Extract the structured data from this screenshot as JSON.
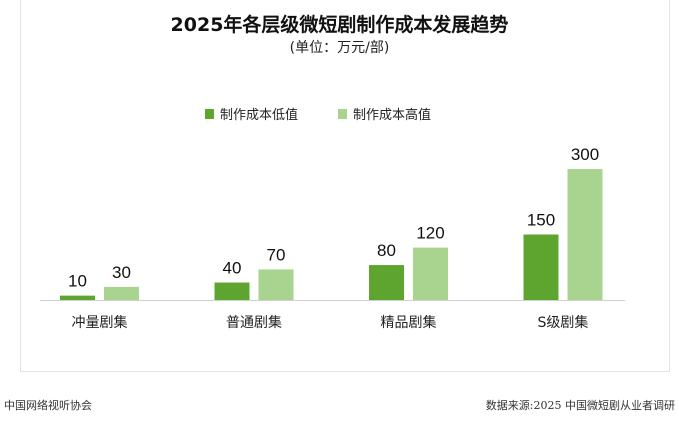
{
  "chart_data": {
    "type": "bar",
    "title": "2025年各层级微短剧制作成本发展趋势",
    "subtitle": "(单位：万元/部)",
    "categories": [
      "冲量剧集",
      "普通剧集",
      "精品剧集",
      "S级剧集"
    ],
    "series": [
      {
        "name": "制作成本低值",
        "values": [
          10,
          40,
          80,
          150
        ],
        "color": "#5ea530"
      },
      {
        "name": "制作成本高值",
        "values": [
          30,
          70,
          120,
          300
        ],
        "color": "#a8d48f"
      }
    ],
    "ylim": [
      0,
      300
    ],
    "grid": false,
    "legend": "top-center",
    "data_labels": true
  },
  "footer": {
    "left": "中国网络视听协会",
    "right": "数据来源:2025 中国微短剧从业者调研"
  }
}
